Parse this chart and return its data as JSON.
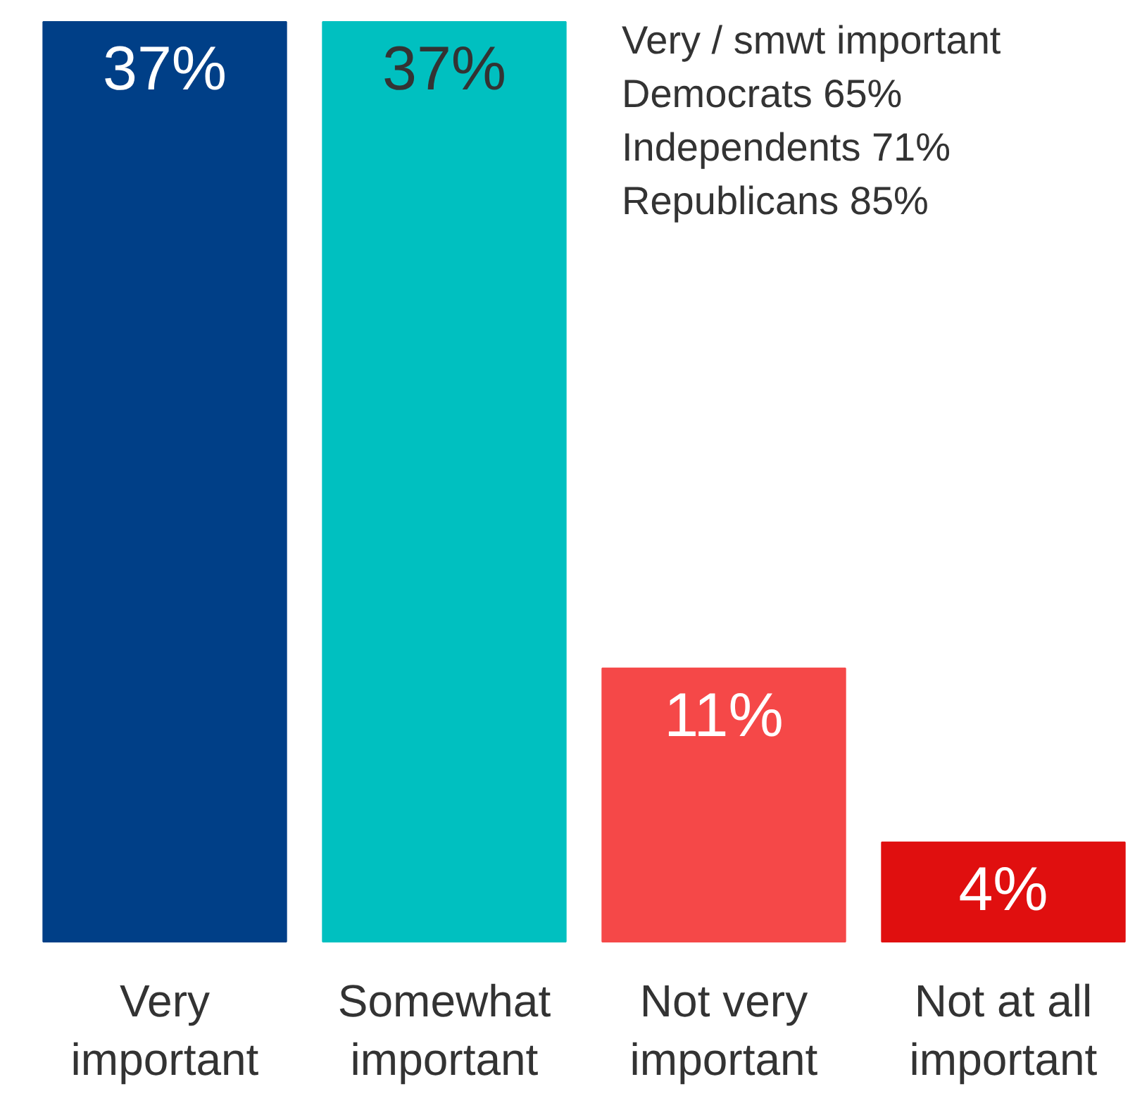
{
  "chart_data": {
    "type": "bar",
    "categories": [
      "Very important",
      "Somewhat important",
      "Not very important",
      "Not at all important"
    ],
    "values": [
      37,
      37,
      11,
      4
    ],
    "colors": [
      "#003f87",
      "#00c0c0",
      "#f54848",
      "#e00f0f"
    ],
    "value_labels": [
      "37%",
      "37%",
      "11%",
      "4%"
    ],
    "annotations": [
      "Very / smwt important",
      "Democrats 65%",
      "Independents 71%",
      "Republicans 85%"
    ]
  }
}
